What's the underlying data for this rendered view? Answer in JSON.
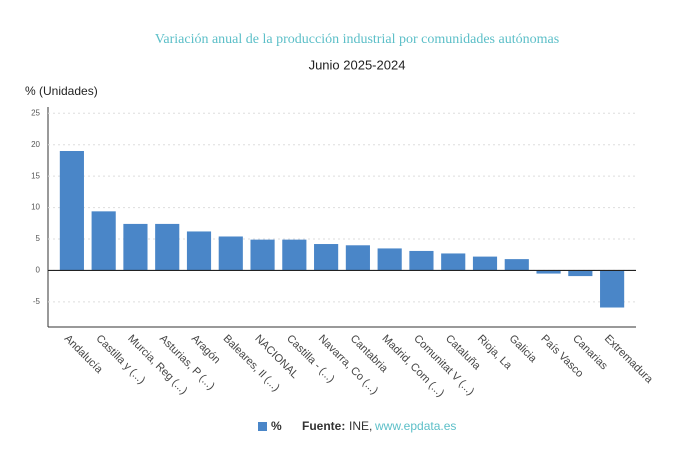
{
  "chart_data": {
    "type": "bar",
    "title": "Variación anual de la producción industrial por comunidades autónomas",
    "subtitle": "Junio 2025-2024",
    "y_label": "% (Unidades)",
    "categories": [
      "Andalucía",
      "Castilla y (...)",
      "Murcia, Reg (...)",
      "Asturias, P (...)",
      "Aragón",
      "Baleares, Il (...)",
      "NACIONAL",
      "Castilla - (...)",
      "Navarra, Co (...)",
      "Cantabria",
      "Madrid, Com (...)",
      "Comunitat V (...)",
      "Cataluña",
      "Rioja, La",
      "Galicia",
      "País Vasco",
      "Canarias",
      "Extremadura"
    ],
    "series": [
      {
        "name": "%",
        "color": "#4a86c8",
        "values": [
          19.0,
          9.4,
          7.4,
          7.4,
          6.2,
          5.4,
          4.9,
          4.9,
          4.2,
          4.0,
          3.5,
          3.1,
          2.7,
          2.2,
          1.8,
          -0.5,
          -0.9,
          -5.9
        ]
      }
    ],
    "ylim": [
      -9,
      26
    ],
    "yticks": [
      -5,
      0,
      5,
      10,
      15,
      20,
      25
    ],
    "grid": true,
    "source": {
      "label": "Fuente:",
      "text": "INE,",
      "link": "www.epdata.es"
    }
  }
}
